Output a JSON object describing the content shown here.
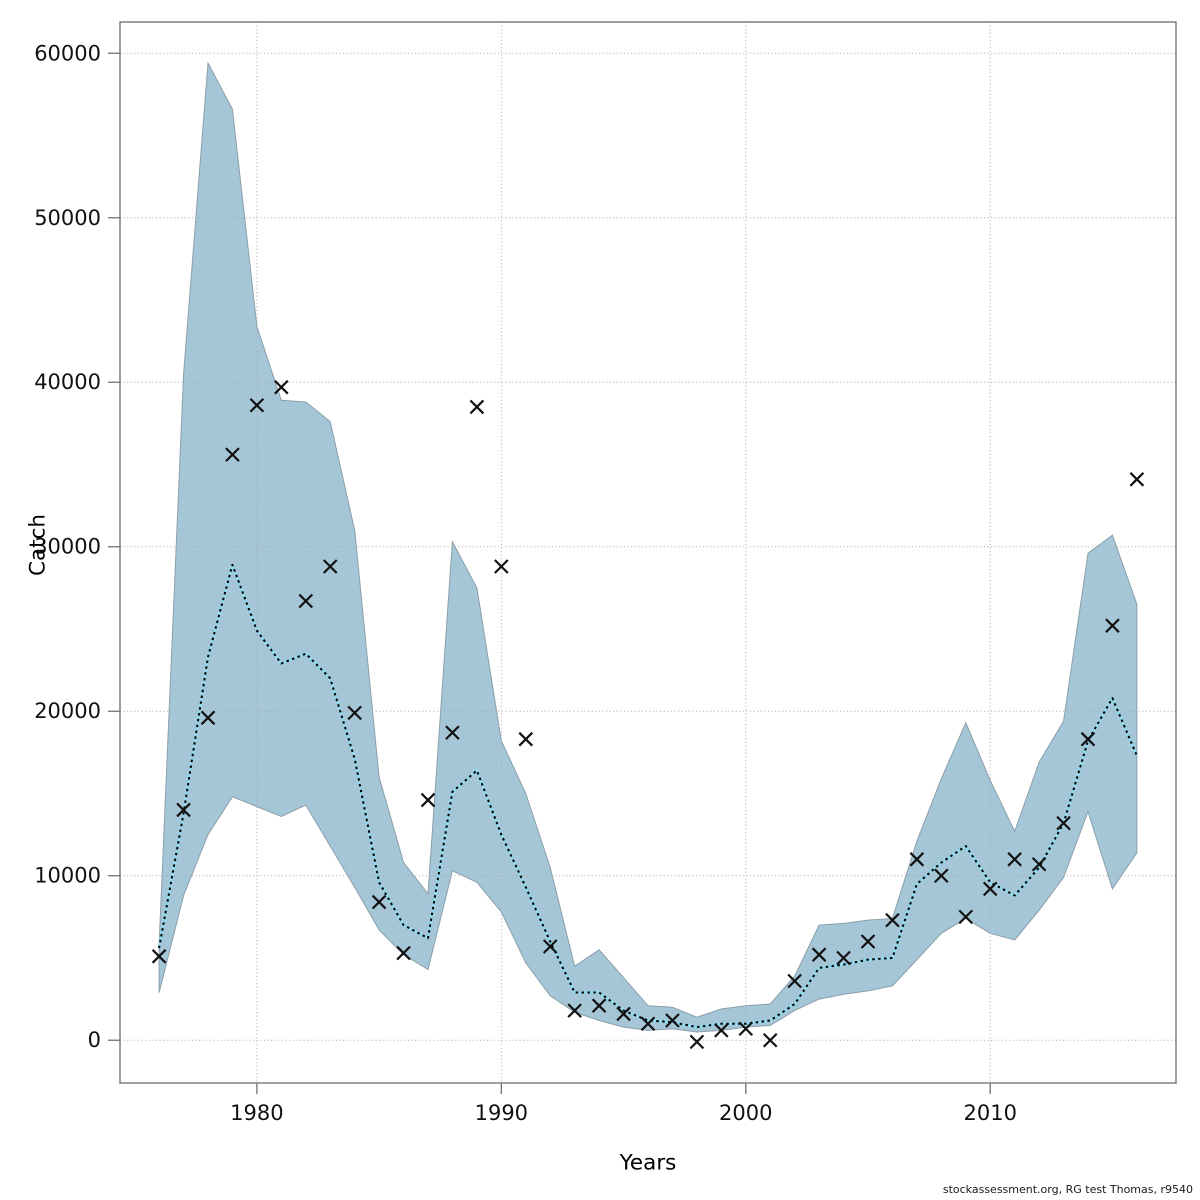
{
  "ylabel": "Catch",
  "xlabel": "Years",
  "watermark": "stockassessment.org, RG test Thomas, r9540",
  "chart_data": {
    "type": "line",
    "title": "",
    "xlabel": "Years",
    "ylabel": "Catch",
    "grid": "dotted",
    "legend_position": "none",
    "xlim": [
      1974.4,
      2017.6
    ],
    "ylim": [
      -2600,
      61900
    ],
    "xticks": [
      1980,
      1990,
      2000,
      2010
    ],
    "yticks": [
      0,
      10000,
      20000,
      30000,
      40000,
      50000,
      60000
    ],
    "x": [
      1976,
      1977,
      1978,
      1979,
      1980,
      1981,
      1982,
      1983,
      1984,
      1985,
      1986,
      1987,
      1988,
      1989,
      1990,
      1991,
      1992,
      1993,
      1994,
      1995,
      1996,
      1997,
      1998,
      1999,
      2000,
      2001,
      2002,
      2003,
      2004,
      2005,
      2006,
      2007,
      2008,
      2009,
      2010,
      2011,
      2012,
      2013,
      2014,
      2015,
      2016
    ],
    "series": [
      {
        "name": "observed-catch",
        "style": "x-markers",
        "values": [
          5100,
          14000,
          19600,
          35600,
          38600,
          39700,
          26700,
          28800,
          19900,
          8400,
          5300,
          14600,
          18700,
          38500,
          28800,
          18300,
          5700,
          1800,
          2100,
          1600,
          1000,
          1200,
          -100,
          600,
          700,
          0,
          3600,
          5200,
          5000,
          6000,
          7300,
          11000,
          10000,
          7500,
          9200,
          11000,
          10700,
          13200,
          18300,
          25200,
          34100
        ]
      },
      {
        "name": "estimated-catch",
        "style": "dotted-line",
        "values": [
          5600,
          13800,
          23300,
          28900,
          24900,
          22900,
          23500,
          22000,
          17100,
          9600,
          7000,
          6200,
          15100,
          16400,
          12500,
          9300,
          6000,
          2900,
          2900,
          1800,
          1200,
          1100,
          800,
          1000,
          1000,
          1200,
          2200,
          4400,
          4600,
          4900,
          5000,
          9500,
          10800,
          11800,
          9600,
          8800,
          10500,
          13200,
          18200,
          20800,
          17300
        ]
      }
    ],
    "band": {
      "name": "confidence-interval",
      "lower": [
        2900,
        8800,
        12500,
        14800,
        14200,
        13600,
        14300,
        11800,
        9300,
        6700,
        5200,
        4300,
        10300,
        9600,
        7800,
        4700,
        2700,
        1700,
        1200,
        800,
        600,
        700,
        500,
        600,
        800,
        900,
        1800,
        2500,
        2800,
        3000,
        3300,
        4900,
        6500,
        7400,
        6500,
        6100,
        7900,
        9900,
        13900,
        9200,
        11400
      ],
      "upper": [
        5800,
        40500,
        59400,
        56600,
        43400,
        38900,
        38800,
        37600,
        31000,
        16000,
        10800,
        8900,
        30300,
        27500,
        18200,
        15000,
        10500,
        4500,
        5500,
        3800,
        2100,
        2000,
        1400,
        1900,
        2100,
        2200,
        3900,
        7000,
        7100,
        7300,
        7400,
        12100,
        15900,
        19300,
        15800,
        12700,
        16900,
        19400,
        29600,
        30700,
        26500
      ]
    },
    "colors": {
      "band_fill": "#a5c6d7",
      "band_edge": "#8b9fa9",
      "fit_line_core": "#8fd8ee",
      "fit_line_dash": "#000000",
      "marker": "#111111",
      "grid": "#a8a8a8",
      "axis_border": "#767676"
    }
  }
}
